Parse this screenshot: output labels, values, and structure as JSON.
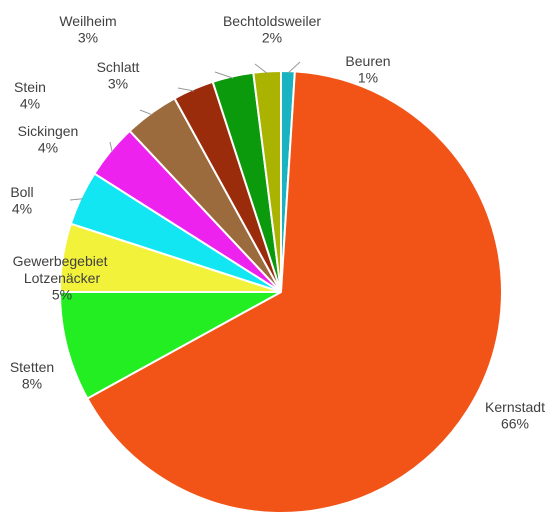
{
  "chart_data": {
    "type": "pie",
    "categories": [
      "Beuren",
      "Kernstadt",
      "Stetten",
      "Gewerbegebiet Lotzenäcker",
      "Boll",
      "Sickingen",
      "Stein",
      "Schlatt",
      "Weilheim",
      "Bechtoldsweiler"
    ],
    "values": [
      1,
      66,
      8,
      5,
      4,
      4,
      4,
      3,
      3,
      2
    ],
    "value_labels": [
      "1%",
      "66%",
      "8%",
      "5%",
      "4%",
      "4%",
      "4%",
      "3%",
      "3%",
      "2%"
    ],
    "colors": [
      "#19b3c2",
      "#f25418",
      "#22ee22",
      "#f2f23a",
      "#12e6f2",
      "#ee22ee",
      "#9b6a3d",
      "#9a2c0c",
      "#0b9a0b",
      "#a9b300"
    ]
  }
}
